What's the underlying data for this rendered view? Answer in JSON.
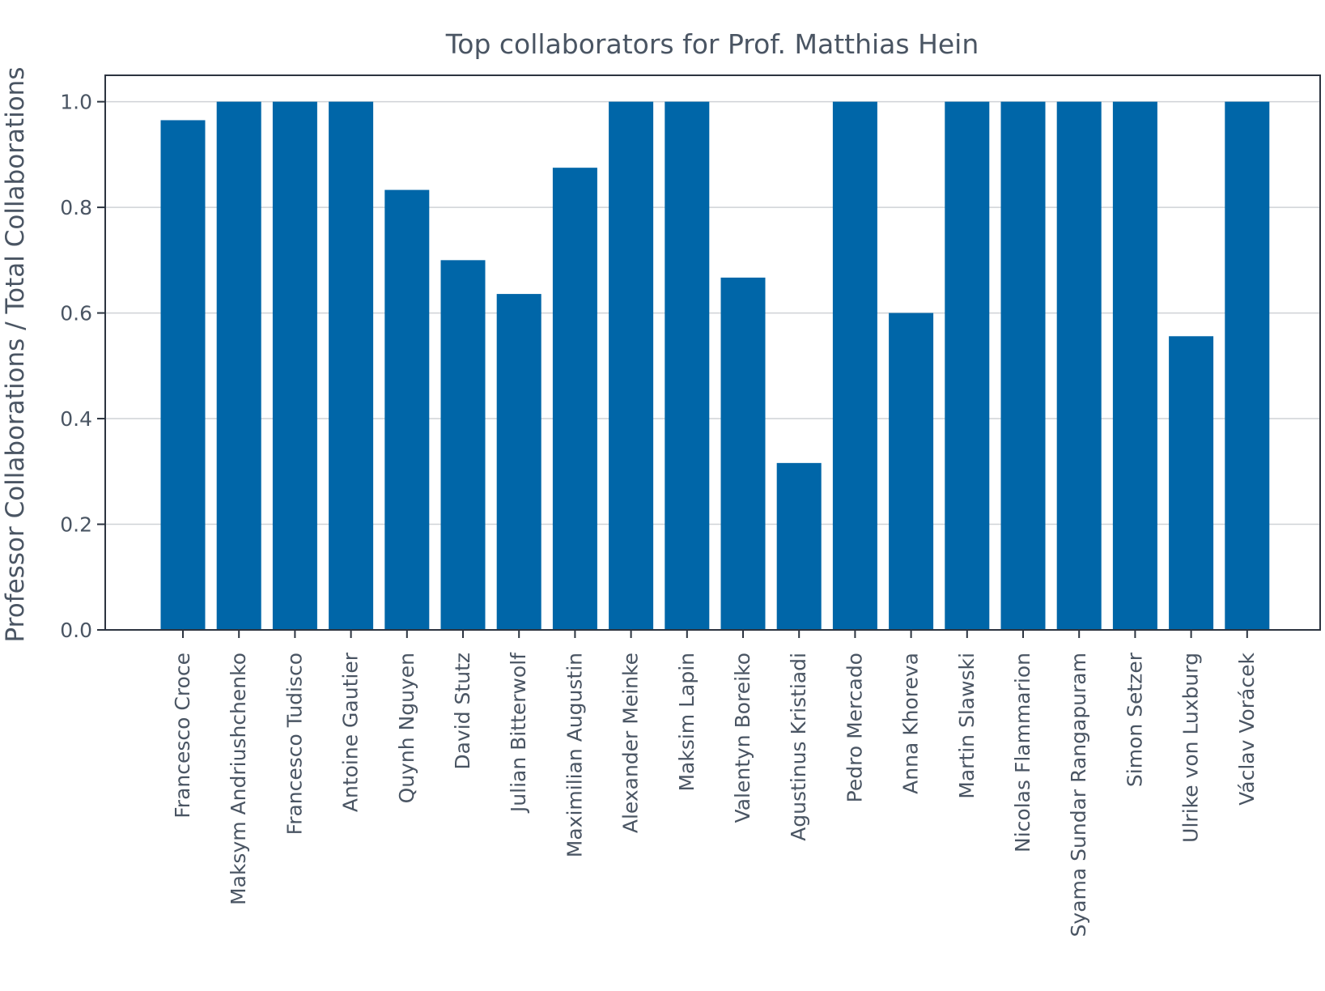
{
  "chart_data": {
    "type": "bar",
    "title": "Top collaborators for Prof. Matthias Hein",
    "xlabel": "",
    "ylabel": "Professor Collaborations / Total Collaborations",
    "ylim": [
      0,
      1.05
    ],
    "yticks": [
      "0.0",
      "0.2",
      "0.4",
      "0.6",
      "0.8",
      "1.0"
    ],
    "grid": "horizontal",
    "bar_color": "#0066a8",
    "categories": [
      "Francesco Croce",
      "Maksym Andriushchenko",
      "Francesco Tudisco",
      "Antoine Gautier",
      "Quynh Nguyen",
      "David Stutz",
      "Julian Bitterwolf",
      "Maximilian Augustin",
      "Alexander Meinke",
      "Maksim Lapin",
      "Valentyn Boreiko",
      "Agustinus Kristiadi",
      "Pedro Mercado",
      "Anna Khoreva",
      "Martin Slawski",
      "Nicolas Flammarion",
      "Syama Sundar Rangapuram",
      "Simon Setzer",
      "Ulrike von Luxburg",
      "Václav Vorácek"
    ],
    "values": [
      0.965,
      1.0,
      1.0,
      1.0,
      0.833,
      0.7,
      0.636,
      0.875,
      1.0,
      1.0,
      0.667,
      0.316,
      1.0,
      0.6,
      1.0,
      1.0,
      1.0,
      1.0,
      0.556,
      1.0
    ]
  }
}
